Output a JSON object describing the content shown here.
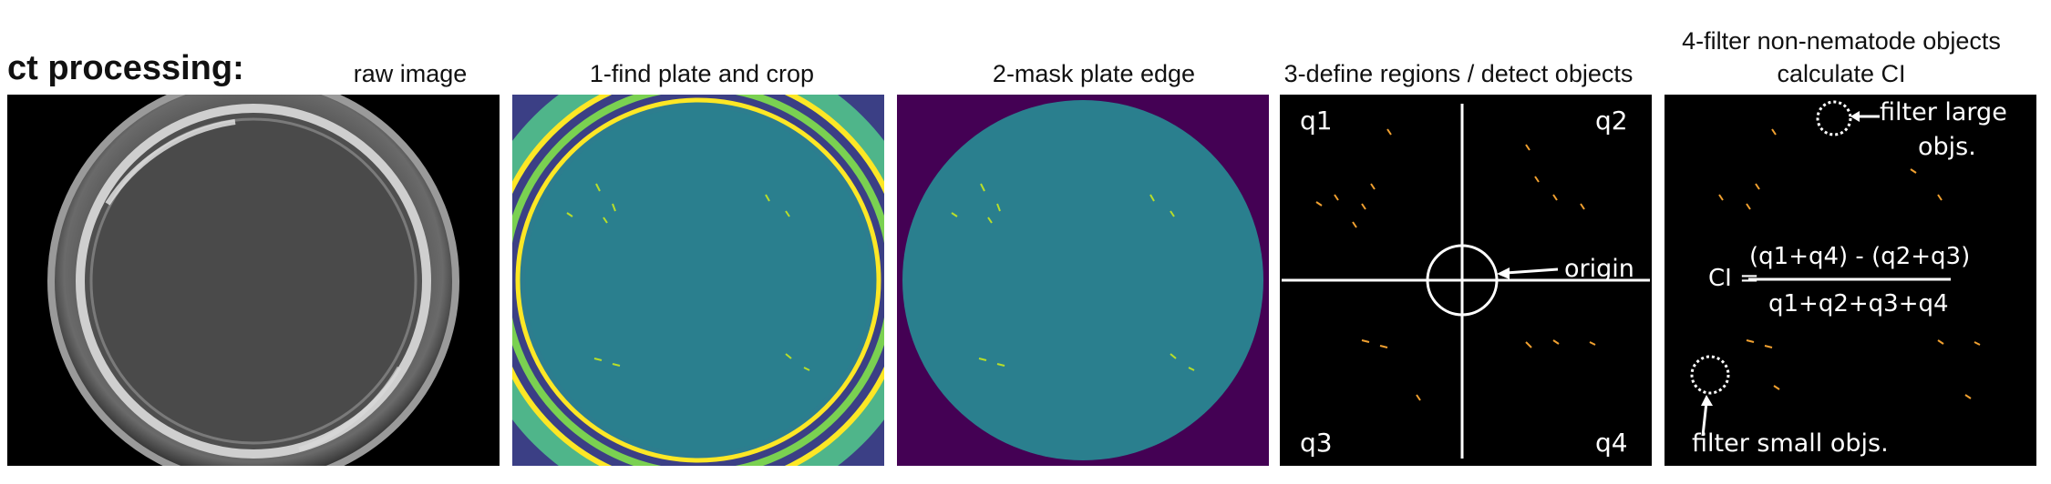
{
  "heading": "ct processing:",
  "panels": [
    {
      "caption": "raw image"
    },
    {
      "caption": "1-find plate and crop"
    },
    {
      "caption": "2-mask plate edge"
    },
    {
      "caption": "3-define regions / detect objects"
    },
    {
      "caption_line1": "4-filter non-nematode objects",
      "caption_line2": "calculate CI"
    }
  ],
  "quadrants": {
    "q1": "q1",
    "q2": "q2",
    "q3": "q3",
    "q4": "q4"
  },
  "origin_label": "origin",
  "filter_large": {
    "line1": "filter large",
    "line2": "objs."
  },
  "filter_small": "filter small objs.",
  "formula": {
    "lhs": "CI =",
    "numerator": "(q1+q4) - (q2+q3)",
    "denominator": "q1+q2+q3+q4"
  },
  "colors": {
    "plate_teal": "#2a7f8e",
    "mask_purple": "#440154",
    "edge_yellow": "#fde725",
    "worm_orange": "#f0a030"
  }
}
